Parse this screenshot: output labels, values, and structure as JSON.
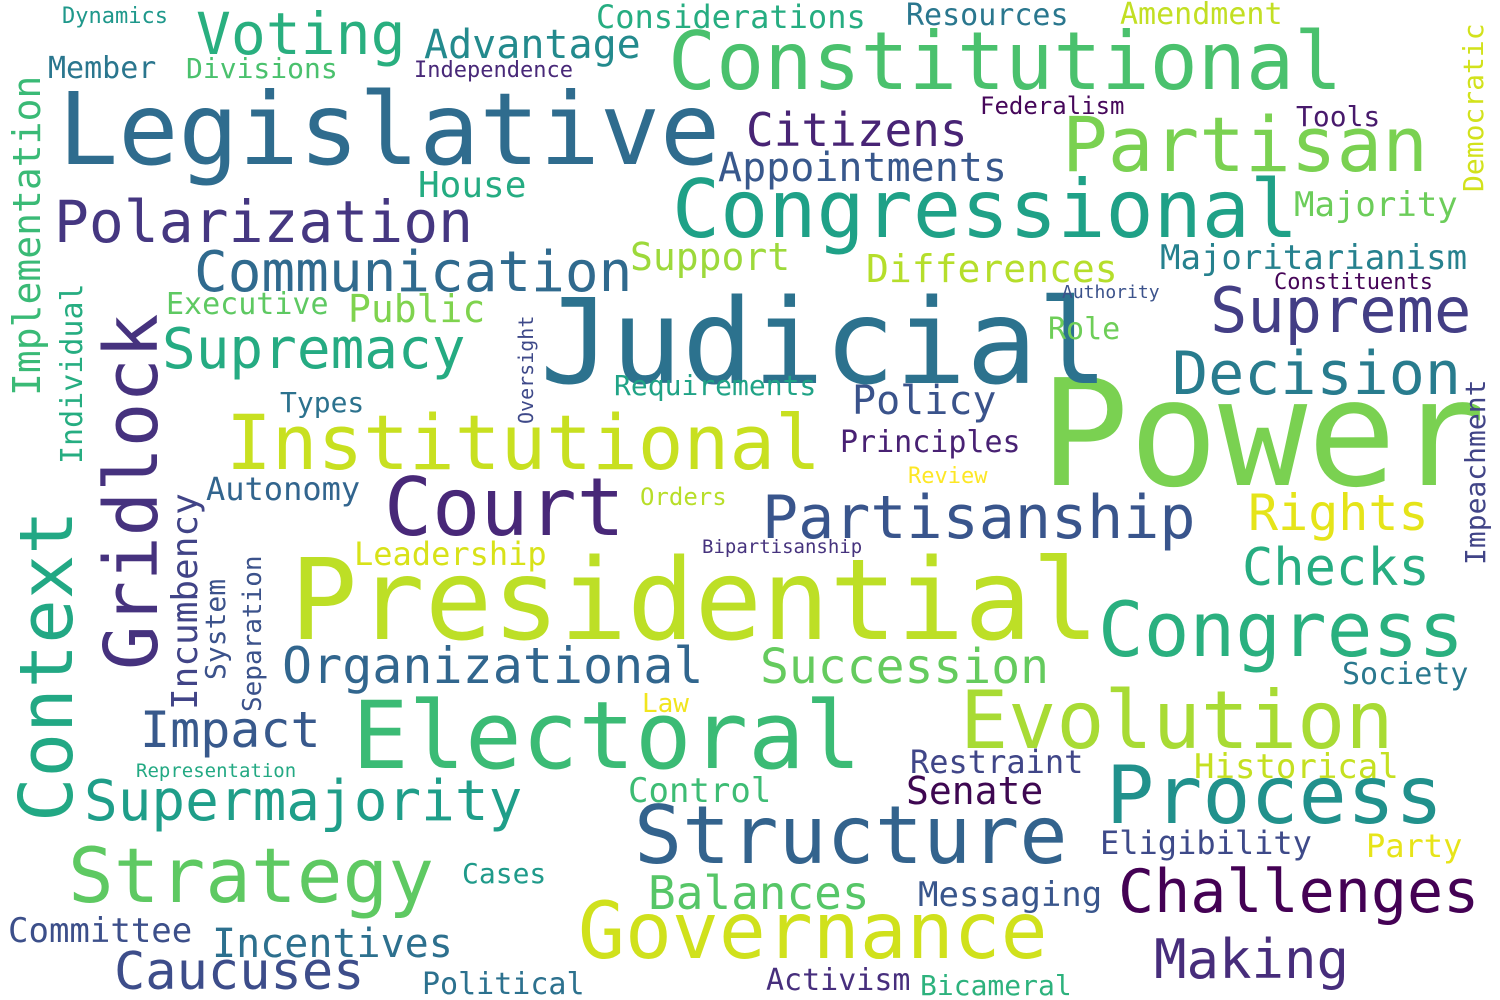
{
  "words": [
    {
      "text": "Power",
      "color": "#7ad151"
    },
    {
      "text": "Judicial",
      "color": "#2c728e"
    },
    {
      "text": "Presidential",
      "color": "#bddf26"
    },
    {
      "text": "Legislative",
      "color": "#2f6c8e"
    },
    {
      "text": "Constitutional",
      "color": "#4ac16d"
    },
    {
      "text": "Congressional",
      "color": "#1fa187"
    },
    {
      "text": "Electoral",
      "color": "#3bbb75"
    },
    {
      "text": "Institutional",
      "color": "#c8e020"
    },
    {
      "text": "Governance",
      "color": "#d0e11c"
    },
    {
      "text": "Structure",
      "color": "#33638d"
    },
    {
      "text": "Partisan",
      "color": "#7ad151"
    },
    {
      "text": "Court",
      "color": "#482878"
    },
    {
      "text": "Evolution",
      "color": "#a8db34"
    },
    {
      "text": "Process",
      "color": "#21918c"
    },
    {
      "text": "Congress",
      "color": "#2ab07f"
    },
    {
      "text": "Strategy",
      "color": "#5ec962"
    },
    {
      "text": "Gridlock",
      "color": "#46327e"
    },
    {
      "text": "Context",
      "color": "#22a884"
    },
    {
      "text": "Partisanship",
      "color": "#39558c"
    },
    {
      "text": "Challenges",
      "color": "#440154"
    },
    {
      "text": "Decision",
      "color": "#287c8e"
    },
    {
      "text": "Supreme",
      "color": "#433e85"
    },
    {
      "text": "Polarization",
      "color": "#453781"
    },
    {
      "text": "Communication",
      "color": "#306a8e"
    },
    {
      "text": "Supremacy",
      "color": "#25ab82"
    },
    {
      "text": "Supermajority",
      "color": "#1f9e89"
    },
    {
      "text": "Organizational",
      "color": "#31668e"
    },
    {
      "text": "Succession",
      "color": "#65cb5e"
    },
    {
      "text": "Voting",
      "color": "#29af7f"
    },
    {
      "text": "Rights",
      "color": "#e5e419"
    },
    {
      "text": "Checks",
      "color": "#27ad81"
    },
    {
      "text": "Making",
      "color": "#472d7b"
    },
    {
      "text": "Caucuses",
      "color": "#3d4d8a"
    },
    {
      "text": "Impact",
      "color": "#38598c"
    },
    {
      "text": "Balances",
      "color": "#56c667"
    },
    {
      "text": "Citizens",
      "color": "#482475"
    },
    {
      "text": "Advantage",
      "color": "#238a8d"
    },
    {
      "text": "Appointments",
      "color": "#38588c"
    },
    {
      "text": "Differences",
      "color": "#b5de2b"
    },
    {
      "text": "Incentives",
      "color": "#2d708e"
    },
    {
      "text": "Policy",
      "color": "#3a538b"
    },
    {
      "text": "Implementation",
      "color": "#3aba76"
    },
    {
      "text": "Individual",
      "color": "#26ad81"
    },
    {
      "text": "Incumbency",
      "color": "#414487"
    },
    {
      "text": "House",
      "color": "#25ac82"
    },
    {
      "text": "Support",
      "color": "#9dd93b"
    },
    {
      "text": "Majoritarianism",
      "color": "#26818e"
    },
    {
      "text": "Public",
      "color": "#7fd34e"
    },
    {
      "text": "Majority",
      "color": "#6ccd5a"
    },
    {
      "text": "Senate",
      "color": "#3e0751"
    },
    {
      "text": "Messaging",
      "color": "#39568c"
    },
    {
      "text": "Historical",
      "color": "#c5e021"
    },
    {
      "text": "Eligibility",
      "color": "#3e4a89"
    },
    {
      "text": "Autonomy",
      "color": "#32658e"
    },
    {
      "text": "Restraint",
      "color": "#404688"
    },
    {
      "text": "Control",
      "color": "#3dbc74"
    },
    {
      "text": "Executive",
      "color": "#5ec962"
    },
    {
      "text": "Leadership",
      "color": "#d8e219"
    },
    {
      "text": "Committee",
      "color": "#3c4f8a"
    },
    {
      "text": "Democratic",
      "color": "#d2e21b"
    },
    {
      "text": "Impeachment",
      "color": "#414487"
    },
    {
      "text": "Principles",
      "color": "#482173"
    },
    {
      "text": "Political",
      "color": "#2c718e"
    },
    {
      "text": "Considerations",
      "color": "#26ad81"
    },
    {
      "text": "Resources",
      "color": "#2a778e"
    },
    {
      "text": "Amendment",
      "color": "#c2df23"
    },
    {
      "text": "Member",
      "color": "#2a768e"
    },
    {
      "text": "Divisions",
      "color": "#4ac16d"
    },
    {
      "text": "Requirements",
      "color": "#20a386"
    },
    {
      "text": "Society",
      "color": "#2a788e"
    },
    {
      "text": "Role",
      "color": "#6ece58"
    },
    {
      "text": "Party",
      "color": "#e7e419"
    },
    {
      "text": "Activism",
      "color": "#472f7d"
    },
    {
      "text": "Bicameral",
      "color": "#2db27d"
    },
    {
      "text": "Tools",
      "color": "#481a6c"
    },
    {
      "text": "Types",
      "color": "#2c728e"
    },
    {
      "text": "Cases",
      "color": "#1f9a8a"
    },
    {
      "text": "Dynamics",
      "color": "#1f988b"
    },
    {
      "text": "Federalism",
      "color": "#46075a"
    },
    {
      "text": "Independence",
      "color": "#482878"
    },
    {
      "text": "Constituents",
      "color": "#450457"
    },
    {
      "text": "System",
      "color": "#3b528b"
    },
    {
      "text": "Separation",
      "color": "#3b528b"
    },
    {
      "text": "Orders",
      "color": "#b8de29"
    },
    {
      "text": "Law",
      "color": "#f1e51d"
    },
    {
      "text": "Review",
      "color": "#fde725"
    },
    {
      "text": "Authority",
      "color": "#3b528b"
    },
    {
      "text": "Oversight",
      "color": "#3e4989"
    },
    {
      "text": "Representation",
      "color": "#23a983"
    },
    {
      "text": "Bipartisanship",
      "color": "#46337e"
    }
  ]
}
